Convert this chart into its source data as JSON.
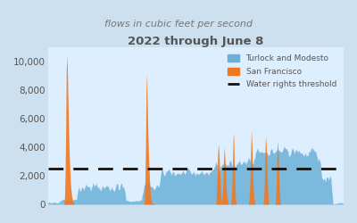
{
  "title": "2022 through June 8",
  "subtitle": "flows in cubic feet per second",
  "title_color": "#555555",
  "subtitle_color": "#777777",
  "background_color": "#cce0f0",
  "plot_bg_color": "#ddeeff",
  "threshold": 2500,
  "threshold_color": "#111111",
  "blue_color": "#6ab0d8",
  "orange_color": "#f07820",
  "ylim": [
    0,
    11000
  ],
  "yticks": [
    0,
    2000,
    4000,
    6000,
    8000,
    10000
  ],
  "legend_labels": [
    "Turlock and Modesto",
    "San Francisco",
    "Water rights threshold"
  ],
  "n_points": 500
}
